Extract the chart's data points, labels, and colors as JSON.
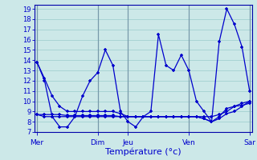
{
  "xlabel": "Température (°c)",
  "background_color": "#cce8e8",
  "grid_color": "#99cccc",
  "line_color": "#0000cc",
  "spine_color": "#0000aa",
  "sep_color": "#7799aa",
  "ylim": [
    7,
    19.4
  ],
  "ytick_min": 7,
  "ytick_max": 19,
  "day_labels": [
    "Mer",
    "Dim",
    "Jeu",
    "Ven",
    "Sar"
  ],
  "day_positions": [
    0,
    8,
    12,
    20,
    28
  ],
  "n_points": 29,
  "xlim_min": -0.3,
  "xlim_max": 28.3,
  "line1": [
    13.8,
    12.0,
    8.5,
    7.5,
    7.5,
    8.5,
    10.5,
    12.0,
    12.8,
    15.0,
    13.5,
    9.0,
    8.0,
    7.5,
    8.5,
    9.0,
    16.5,
    13.5,
    13.0,
    14.5,
    13.0,
    10.0,
    9.0,
    8.0,
    15.8,
    19.0,
    17.5,
    15.3,
    11.0
  ],
  "line2": [
    8.7,
    8.7,
    8.7,
    8.7,
    8.6,
    8.6,
    8.6,
    8.6,
    8.6,
    8.6,
    8.6,
    8.5,
    8.5,
    8.5,
    8.5,
    8.5,
    8.5,
    8.5,
    8.5,
    8.5,
    8.5,
    8.5,
    8.3,
    8.0,
    8.5,
    9.3,
    9.5,
    9.6,
    9.8
  ],
  "line3": [
    13.8,
    12.2,
    10.5,
    9.5,
    9.0,
    9.0,
    9.0,
    9.0,
    9.0,
    9.0,
    9.0,
    8.8,
    8.5,
    8.5,
    8.5,
    8.5,
    8.5,
    8.5,
    8.5,
    8.5,
    8.5,
    8.5,
    8.5,
    8.5,
    8.7,
    9.0,
    9.5,
    9.8,
    10.0
  ],
  "line4": [
    8.7,
    8.5,
    8.5,
    8.5,
    8.5,
    8.5,
    8.5,
    8.5,
    8.5,
    8.5,
    8.5,
    8.5,
    8.5,
    8.5,
    8.5,
    8.5,
    8.5,
    8.5,
    8.5,
    8.5,
    8.5,
    8.5,
    8.3,
    8.0,
    8.3,
    8.8,
    9.0,
    9.5,
    10.0
  ],
  "xlabel_fontsize": 8,
  "ytick_fontsize": 6,
  "xtick_fontsize": 6.5
}
